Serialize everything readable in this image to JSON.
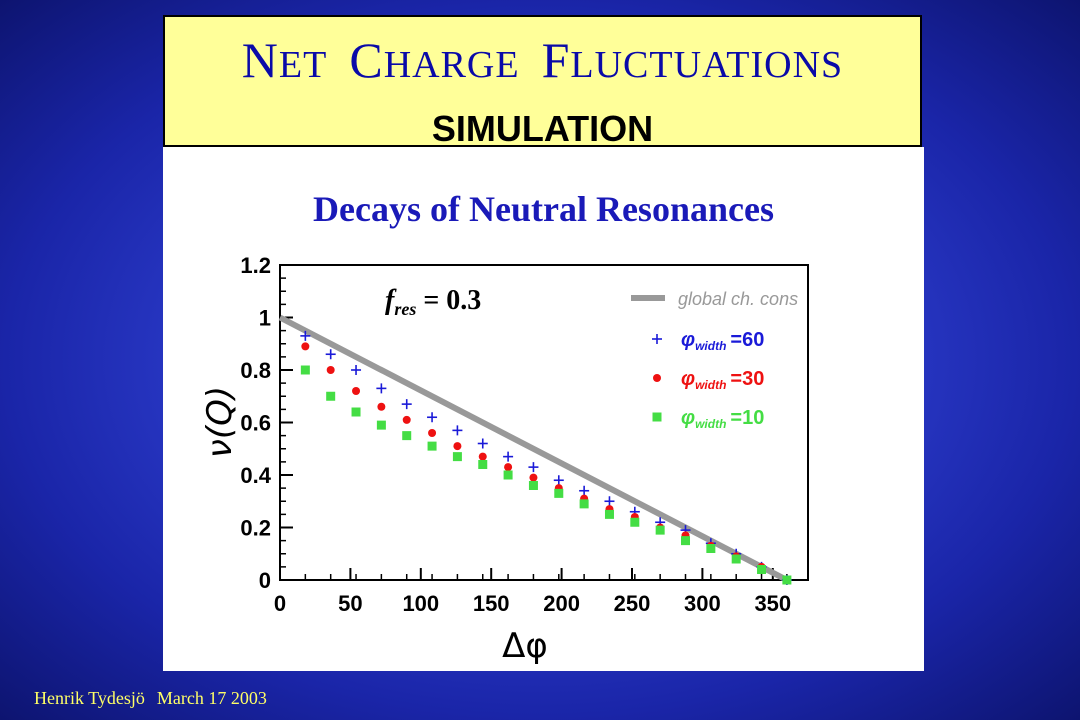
{
  "slide": {
    "title": {
      "n": "N",
      "et": "ET",
      "c": "C",
      "harge": "HARGE",
      "f": "F",
      "luctuations": "LUCTUATIONS"
    },
    "subtitle": "SIMULATION",
    "footer": {
      "author": "Henrik Tydesjö",
      "date": "March 17 2003"
    }
  },
  "colors": {
    "background": "#2e3fd0",
    "title_box": "#ffff99",
    "title_text": "#0a0aa8",
    "heading_text": "#1a1ab8",
    "footer_text": "#ffff66",
    "line": "#999999",
    "phi60": "#1a1ad8",
    "phi30": "#ee1111",
    "phi10": "#44dd44"
  },
  "chart_data": {
    "type": "scatter",
    "title": "Decays of Neutral Resonances",
    "annotation": {
      "base": "f",
      "sub": "res",
      "text": " = 0.3"
    },
    "xlabel": "Δφ",
    "ylabel": "ν(Q)",
    "xlim": [
      0,
      375
    ],
    "ylim": [
      0,
      1.2
    ],
    "xticks": [
      0,
      50,
      100,
      150,
      200,
      250,
      300,
      350
    ],
    "yticks": [
      0,
      0.2,
      0.4,
      0.6,
      0.8,
      1,
      1.2
    ],
    "ytick_labels": [
      "0",
      "0.2",
      "0.4",
      "0.6",
      "0.8",
      "1",
      "1.2"
    ],
    "grid": false,
    "legend_position": "top-right",
    "line": {
      "name": "global ch. cons",
      "x": [
        0,
        360
      ],
      "y": [
        1.0,
        0.0
      ]
    },
    "series": [
      {
        "name": "=60",
        "legend_label": "φ",
        "legend_sub": "width",
        "marker": "plus",
        "x": [
          18,
          36,
          54,
          72,
          90,
          108,
          126,
          144,
          162,
          180,
          198,
          216,
          234,
          252,
          270,
          288,
          306,
          324,
          342,
          360
        ],
        "y": [
          0.93,
          0.86,
          0.8,
          0.73,
          0.67,
          0.62,
          0.57,
          0.52,
          0.47,
          0.43,
          0.38,
          0.34,
          0.3,
          0.26,
          0.22,
          0.19,
          0.14,
          0.1,
          0.05,
          0.0
        ]
      },
      {
        "name": "=30",
        "legend_label": "φ",
        "legend_sub": "width",
        "marker": "circle",
        "x": [
          18,
          36,
          54,
          72,
          90,
          108,
          126,
          144,
          162,
          180,
          198,
          216,
          234,
          252,
          270,
          288,
          306,
          324,
          342,
          360
        ],
        "y": [
          0.89,
          0.8,
          0.72,
          0.66,
          0.61,
          0.56,
          0.51,
          0.47,
          0.43,
          0.39,
          0.35,
          0.31,
          0.27,
          0.24,
          0.2,
          0.17,
          0.13,
          0.09,
          0.05,
          0.0
        ]
      },
      {
        "name": "=10",
        "legend_label": "φ",
        "legend_sub": "width",
        "marker": "square",
        "x": [
          18,
          36,
          54,
          72,
          90,
          108,
          126,
          144,
          162,
          180,
          198,
          216,
          234,
          252,
          270,
          288,
          306,
          324,
          342,
          360
        ],
        "y": [
          0.8,
          0.7,
          0.64,
          0.59,
          0.55,
          0.51,
          0.47,
          0.44,
          0.4,
          0.36,
          0.33,
          0.29,
          0.25,
          0.22,
          0.19,
          0.15,
          0.12,
          0.08,
          0.04,
          0.0
        ]
      }
    ]
  }
}
